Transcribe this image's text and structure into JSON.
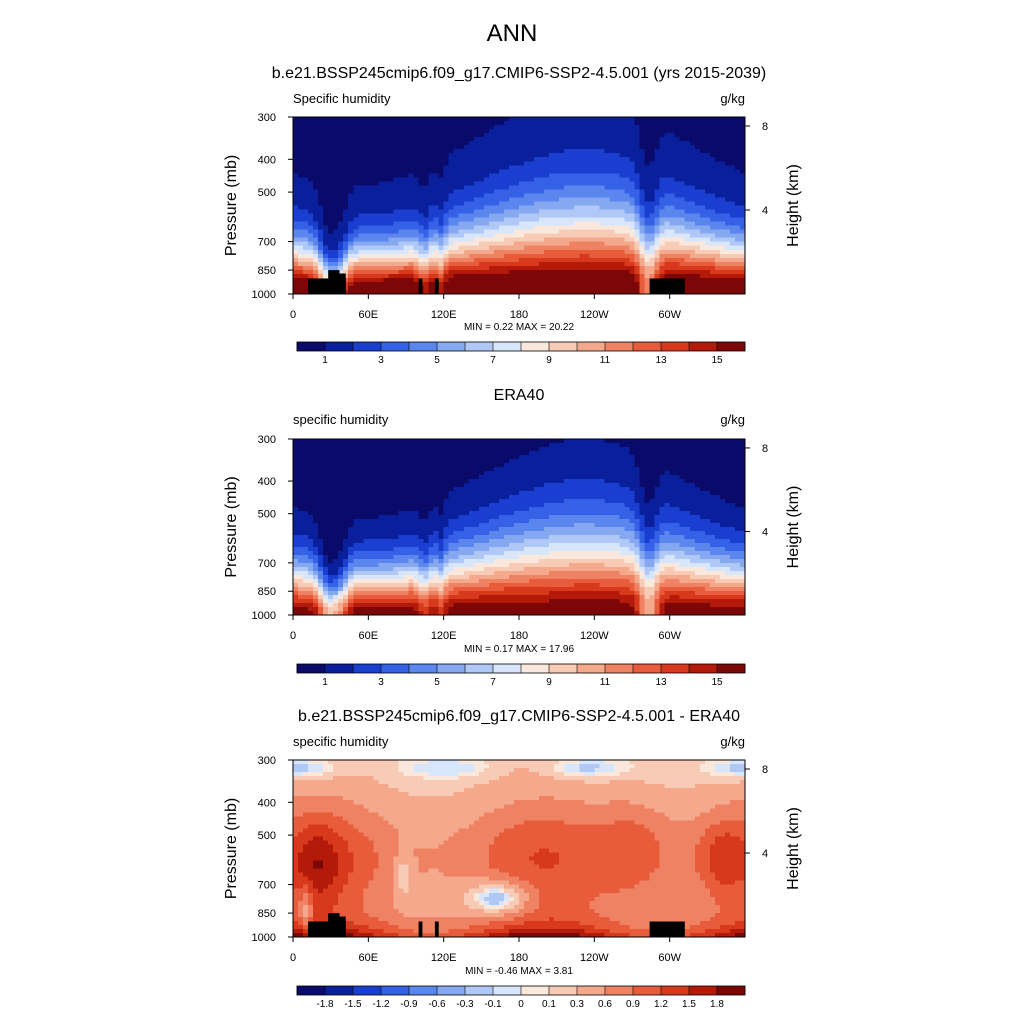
{
  "figure": {
    "title": "ANN"
  },
  "chart_data": [
    {
      "type": "heatmap",
      "title": "b.e21.BSSP245cmip6.f09_g17.CMIP6-SSP2-4.5.001 (yrs 2015-2039)",
      "left_label": "Specific humidity",
      "units": "g/kg",
      "ylabel": "Pressure (mb)",
      "y2label": "Height (km)",
      "x_ticks": [
        "0",
        "60E",
        "120E",
        "180",
        "120W",
        "60W"
      ],
      "x_tick_values": [
        0,
        60,
        120,
        180,
        240,
        300
      ],
      "xlim": [
        0,
        360
      ],
      "y_ticks": [
        "300",
        "400",
        "500",
        "700",
        "850",
        "1000"
      ],
      "y_tick_values": [
        300,
        400,
        500,
        700,
        850,
        1000
      ],
      "ylim": [
        1000,
        300
      ],
      "y2_ticks": [
        "8",
        "4"
      ],
      "y2_tick_values": [
        8,
        4
      ],
      "stats": {
        "min_label": "MIN =",
        "min": "0.22",
        "max_label": "MAX =",
        "max": "20.22"
      },
      "colorbar": {
        "labels": [
          "1",
          "3",
          "5",
          "7",
          "9",
          "11",
          "13",
          "15"
        ],
        "levels": 16
      },
      "field": {
        "surface": 17.5,
        "top": 0.8,
        "land_mask": true
      }
    },
    {
      "type": "heatmap",
      "title": "ERA40",
      "left_label": "specific humidity",
      "units": "g/kg",
      "ylabel": "Pressure (mb)",
      "y2label": "Height (km)",
      "x_ticks": [
        "0",
        "60E",
        "120E",
        "180",
        "120W",
        "60W"
      ],
      "x_tick_values": [
        0,
        60,
        120,
        180,
        240,
        300
      ],
      "xlim": [
        0,
        360
      ],
      "y_ticks": [
        "300",
        "400",
        "500",
        "700",
        "850",
        "1000"
      ],
      "y_tick_values": [
        300,
        400,
        500,
        700,
        850,
        1000
      ],
      "ylim": [
        1000,
        300
      ],
      "y2_ticks": [
        "8",
        "4"
      ],
      "y2_tick_values": [
        8,
        4
      ],
      "stats": {
        "min_label": "MIN =",
        "min": "0.17",
        "max_label": "MAX =",
        "max": "17.96"
      },
      "colorbar": {
        "labels": [
          "1",
          "3",
          "5",
          "7",
          "9",
          "11",
          "13",
          "15"
        ],
        "levels": 16
      },
      "field": {
        "surface": 16.0,
        "top": 0.6,
        "land_mask": false
      }
    },
    {
      "type": "heatmap",
      "title": "b.e21.BSSP245cmip6.f09_g17.CMIP6-SSP2-4.5.001 - ERA40",
      "left_label": "specific humidity",
      "units": "g/kg",
      "ylabel": "Pressure (mb)",
      "y2label": "Height (km)",
      "x_ticks": [
        "0",
        "60E",
        "120E",
        "180",
        "120W",
        "60W"
      ],
      "x_tick_values": [
        0,
        60,
        120,
        180,
        240,
        300
      ],
      "xlim": [
        0,
        360
      ],
      "y_ticks": [
        "300",
        "400",
        "500",
        "700",
        "850",
        "1000"
      ],
      "y_tick_values": [
        300,
        400,
        500,
        700,
        850,
        1000
      ],
      "ylim": [
        1000,
        300
      ],
      "y2_ticks": [
        "8",
        "4"
      ],
      "y2_tick_values": [
        8,
        4
      ],
      "stats": {
        "min_label": "MIN =",
        "min": "-0.46",
        "max_label": "MAX =",
        "max": "3.81"
      },
      "colorbar": {
        "labels": [
          "-1.8",
          "-1.5",
          "-1.2",
          "-0.9",
          "-0.6",
          "-0.3",
          "-0.1",
          "0",
          "0.1",
          "0.3",
          "0.6",
          "0.9",
          "1.2",
          "1.5",
          "1.8"
        ],
        "levels": 16
      },
      "field": {
        "diff": true,
        "land_mask": true
      }
    }
  ],
  "colors": {
    "sequential": [
      "#0a0a6b",
      "#0a1f9c",
      "#1a3fd0",
      "#3461e6",
      "#5a86ee",
      "#86a8f0",
      "#b0c8f5",
      "#d8e6fb",
      "#fbe8dd",
      "#f8cbb6",
      "#f4a88c",
      "#ef8263",
      "#e85c3c",
      "#d8391c",
      "#b41a0a",
      "#7d0606"
    ],
    "diverging": [
      "#0a0a6b",
      "#0a1f9c",
      "#1a3fd0",
      "#3461e6",
      "#5a86ee",
      "#86a8f0",
      "#b0c8f5",
      "#d8e6fb",
      "#fbe8dd",
      "#f8cbb6",
      "#f4a88c",
      "#ef8263",
      "#e85c3c",
      "#d8391c",
      "#b41a0a",
      "#7d0606"
    ],
    "land": "#000000"
  }
}
